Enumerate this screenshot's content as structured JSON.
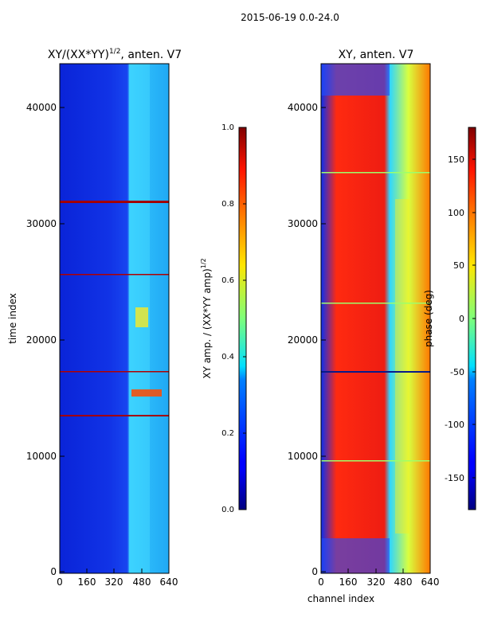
{
  "chart_data": {
    "suptitle": "2015-06-19 0.0-24.0",
    "panels": [
      {
        "type": "heatmap",
        "title_main": "XY/(XX*YY)",
        "title_sup": "1/2",
        "title_rest": ", anten. V7",
        "xlabel": "",
        "ylabel": "time index",
        "xlim": [
          0,
          640
        ],
        "ylim": [
          0,
          44000
        ],
        "xticks": [
          0,
          160,
          320,
          480,
          640
        ],
        "yticks": [
          0,
          10000,
          20000,
          30000,
          40000
        ],
        "colormap": "jet",
        "colorbar": {
          "label_main": "XY amp. / (XX*YY amp)",
          "label_sup": "1/2",
          "range": [
            0.0,
            1.0
          ],
          "ticks": [
            "0.0",
            "0.2",
            "0.4",
            "0.6",
            "0.8",
            "1.0"
          ]
        }
      },
      {
        "type": "heatmap",
        "title_main": "XY, anten. V7",
        "xlabel": "channel index",
        "ylabel": "",
        "xlim": [
          0,
          640
        ],
        "ylim": [
          0,
          44000
        ],
        "xticks": [
          0,
          160,
          320,
          480,
          640
        ],
        "yticks": [
          0,
          10000,
          20000,
          30000,
          40000
        ],
        "colormap": "jet",
        "colorbar": {
          "label_main": "phase (deg)",
          "range": [
            -180,
            180
          ],
          "ticks": [
            "-150",
            "-100",
            "-50",
            "0",
            "50",
            "100",
            "150"
          ]
        }
      }
    ]
  }
}
